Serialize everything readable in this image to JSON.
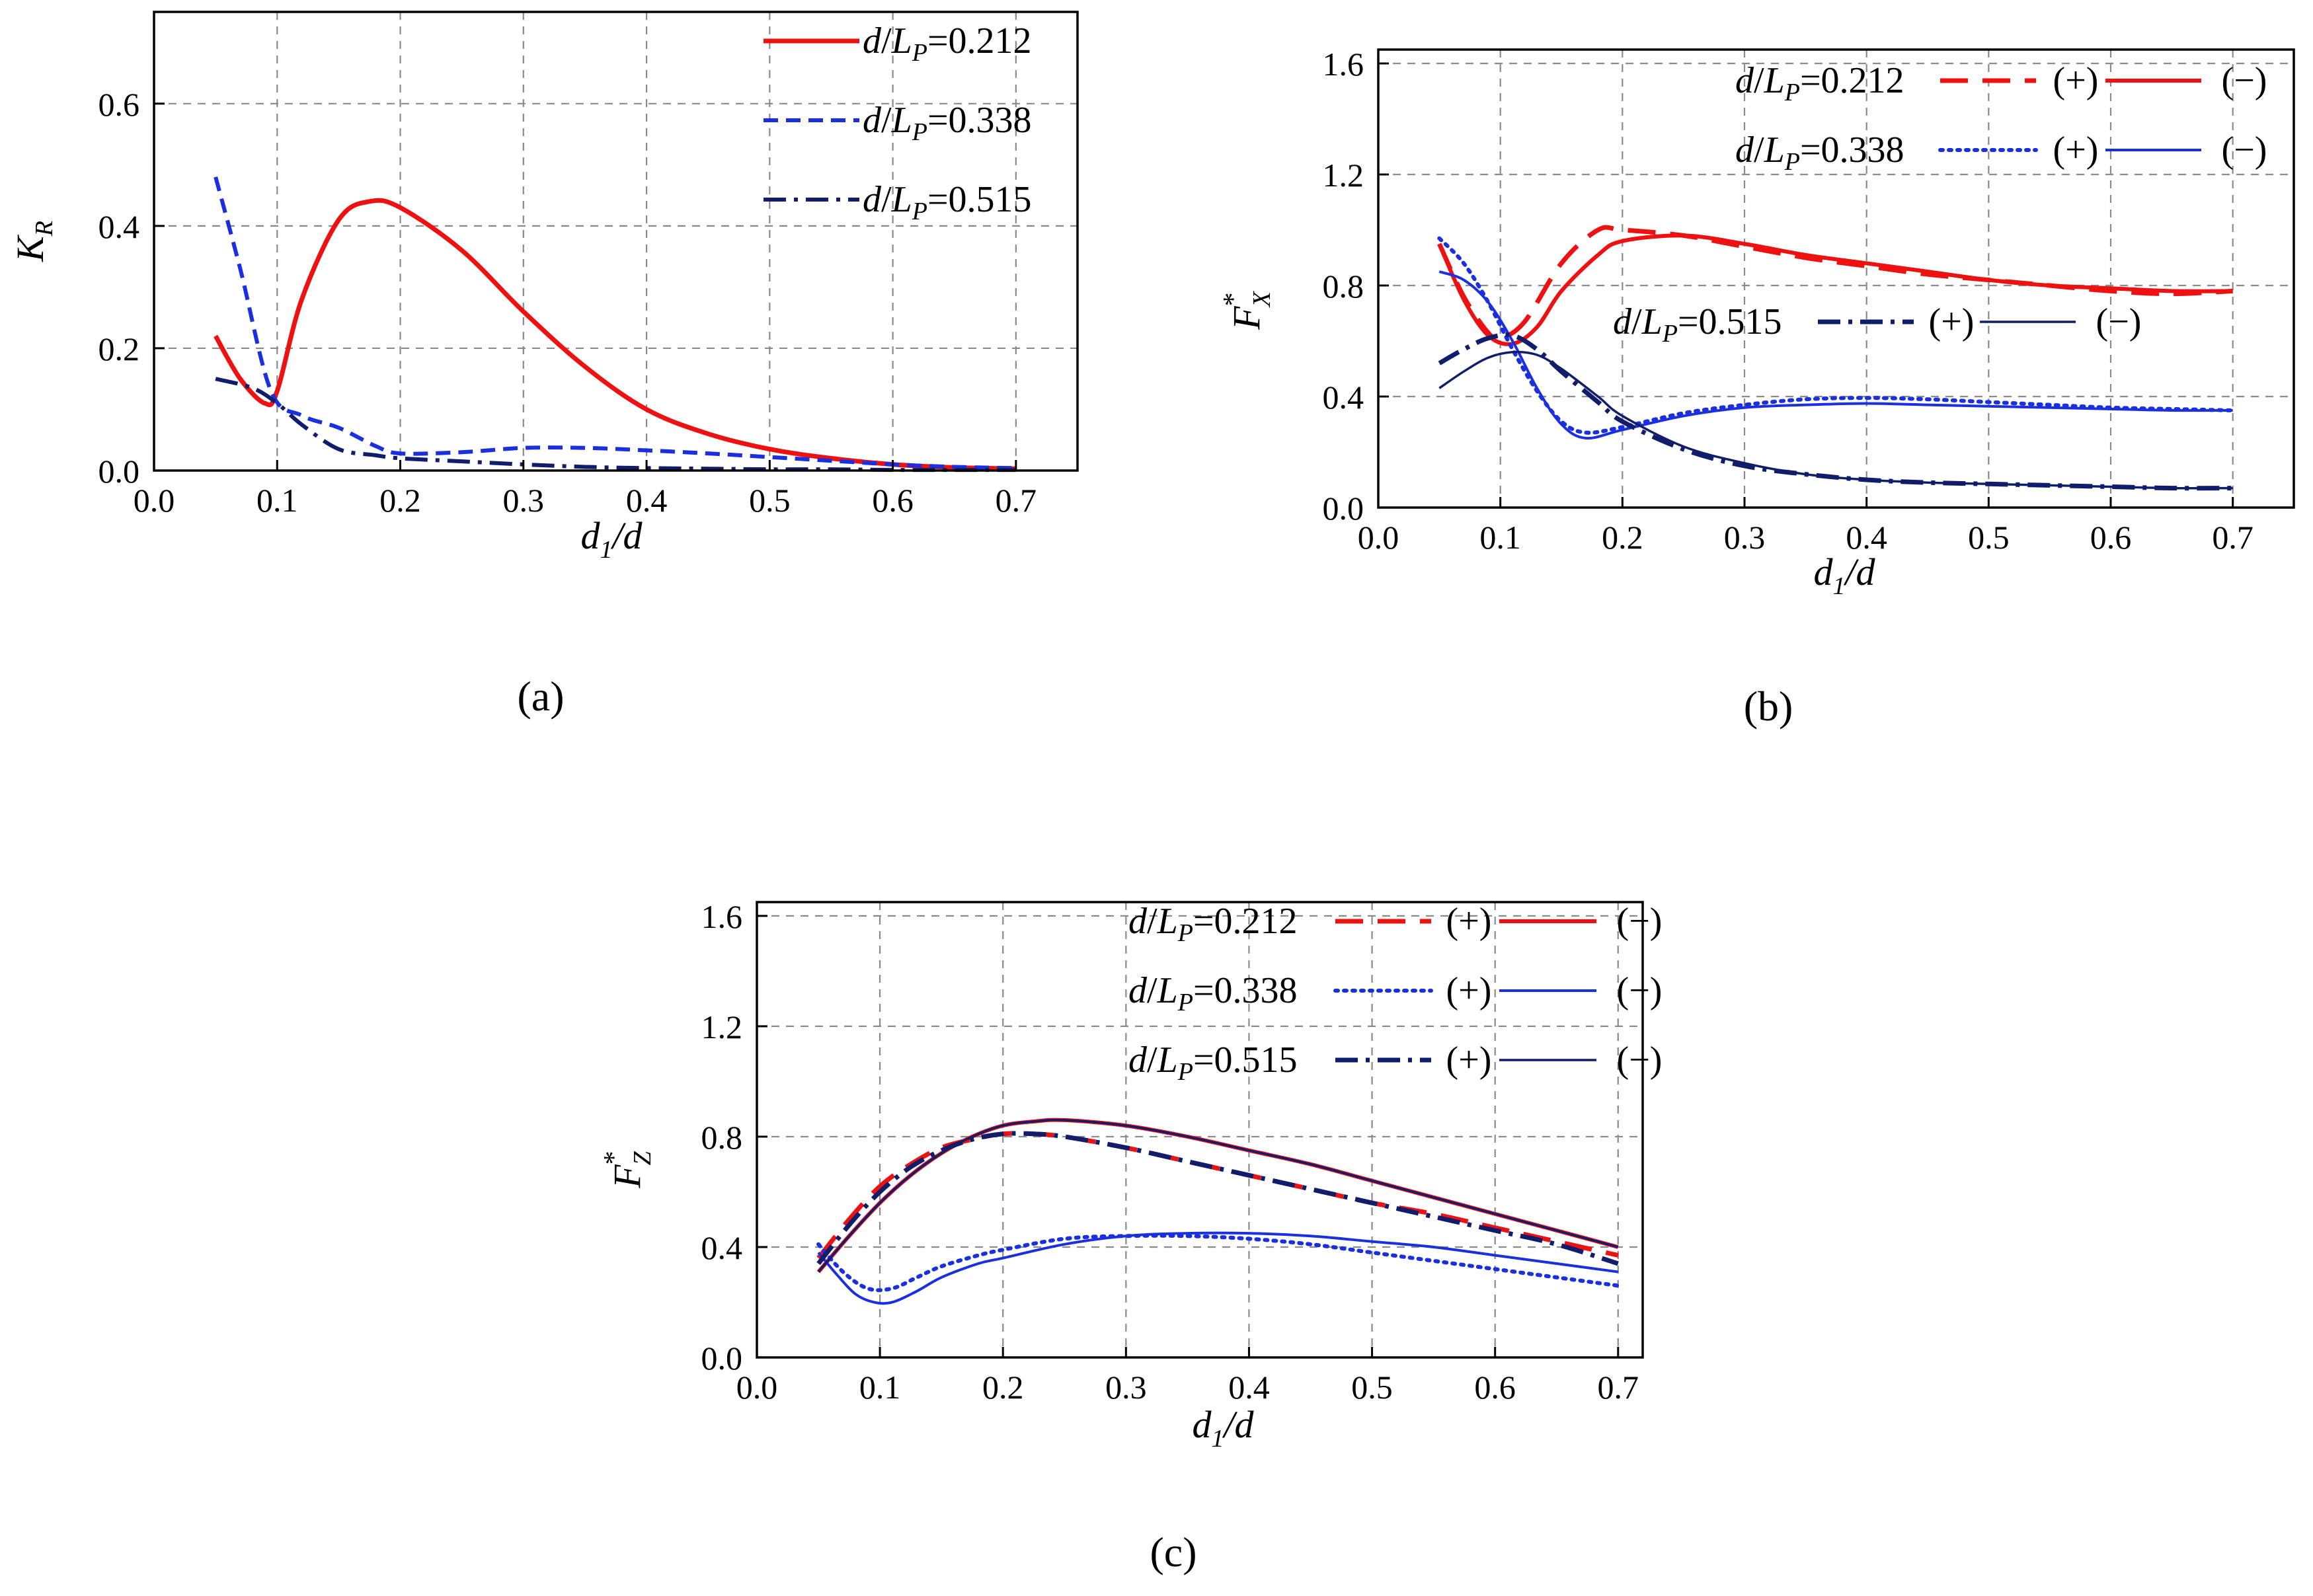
{
  "captions": [
    "(a)",
    "(b)",
    "(c)"
  ],
  "chart_data": [
    {
      "panel": "a",
      "type": "line",
      "caption": "(a)",
      "title": "",
      "xlabel": "d1/d",
      "xlabel_main": "d",
      "xlabel_sub": "1",
      "xlabel_tail": "/d",
      "ylabel": "K_R",
      "ylabel_main": "K",
      "ylabel_sub": "R",
      "ylabel_sup": "",
      "xlim": [
        0.0,
        0.75
      ],
      "ylim": [
        0.0,
        0.75
      ],
      "xticks": [
        0.0,
        0.1,
        0.2,
        0.3,
        0.4,
        0.5,
        0.6,
        0.7
      ],
      "xtick_labels": [
        "0.0",
        "0.1",
        "0.2",
        "0.3",
        "0.4",
        "0.5",
        "0.6",
        "0.7"
      ],
      "yticks": [
        0.0,
        0.2,
        0.4,
        0.6
      ],
      "ytick_labels": [
        "0.0",
        "0.2",
        "0.4",
        "0.6"
      ],
      "grid": true,
      "legend_position": "top-right",
      "series": [
        {
          "name": "d/LP=0.212",
          "label_value": "0.212",
          "side": "",
          "color": "#ee1111",
          "style": "solid",
          "width": 7,
          "x": [
            0.05,
            0.07,
            0.09,
            0.1,
            0.12,
            0.15,
            0.175,
            0.2,
            0.25,
            0.3,
            0.35,
            0.4,
            0.45,
            0.5,
            0.55,
            0.6,
            0.65,
            0.7
          ],
          "y": [
            0.22,
            0.15,
            0.11,
            0.13,
            0.28,
            0.41,
            0.44,
            0.43,
            0.36,
            0.26,
            0.17,
            0.1,
            0.06,
            0.035,
            0.02,
            0.01,
            0.005,
            0.003
          ]
        },
        {
          "name": "d/LP=0.338",
          "label_value": "0.338",
          "side": "",
          "color": "#1a2fe0",
          "style": "dashed",
          "width": 6,
          "x": [
            0.05,
            0.07,
            0.095,
            0.12,
            0.15,
            0.18,
            0.2,
            0.25,
            0.3,
            0.35,
            0.4,
            0.45,
            0.5,
            0.55,
            0.6,
            0.65,
            0.7
          ],
          "y": [
            0.48,
            0.33,
            0.13,
            0.09,
            0.07,
            0.04,
            0.028,
            0.03,
            0.037,
            0.037,
            0.033,
            0.028,
            0.022,
            0.016,
            0.01,
            0.006,
            0.004
          ]
        },
        {
          "name": "d/LP=0.515",
          "label_value": "0.515",
          "side": "",
          "color": "#101d6b",
          "style": "dashdot",
          "width": 6,
          "x": [
            0.05,
            0.08,
            0.1,
            0.12,
            0.15,
            0.18,
            0.2,
            0.25,
            0.3,
            0.35,
            0.4,
            0.45,
            0.5,
            0.55,
            0.6,
            0.65,
            0.7
          ],
          "y": [
            0.15,
            0.135,
            0.11,
            0.075,
            0.035,
            0.025,
            0.02,
            0.015,
            0.01,
            0.006,
            0.004,
            0.003,
            0.002,
            0.002,
            0.001,
            0.001,
            0.001
          ]
        }
      ],
      "legend": [
        {
          "value": "0.212",
          "plus": "",
          "minus": ""
        },
        {
          "value": "0.338",
          "plus": "",
          "minus": ""
        },
        {
          "value": "0.515",
          "plus": "",
          "minus": ""
        }
      ]
    },
    {
      "panel": "b",
      "type": "line",
      "caption": "(b)",
      "title": "",
      "xlabel": "d1/d",
      "xlabel_main": "d",
      "xlabel_sub": "1",
      "xlabel_tail": "/d",
      "ylabel": "F*_X",
      "ylabel_main": "F",
      "ylabel_sub": "X",
      "ylabel_sup": "*",
      "xlim": [
        0.0,
        0.75
      ],
      "ylim": [
        0.0,
        1.65
      ],
      "xticks": [
        0.0,
        0.1,
        0.2,
        0.3,
        0.4,
        0.5,
        0.6,
        0.7
      ],
      "xtick_labels": [
        "0.0",
        "0.1",
        "0.2",
        "0.3",
        "0.4",
        "0.5",
        "0.6",
        "0.7"
      ],
      "yticks": [
        0.0,
        0.4,
        0.8,
        1.2,
        1.6
      ],
      "ytick_labels": [
        "0.0",
        "0.4",
        "0.8",
        "1.2",
        "1.6"
      ],
      "grid": true,
      "legend_position": "top-right",
      "series": [
        {
          "name": "d/LP=0.212 (+)",
          "color": "#ee1111",
          "style": "longdash",
          "width": 7,
          "x": [
            0.05,
            0.07,
            0.09,
            0.1,
            0.12,
            0.15,
            0.18,
            0.2,
            0.25,
            0.3,
            0.35,
            0.4,
            0.45,
            0.5,
            0.55,
            0.6,
            0.65,
            0.7
          ],
          "y": [
            0.95,
            0.76,
            0.63,
            0.61,
            0.67,
            0.88,
            1.0,
            1.0,
            0.98,
            0.94,
            0.9,
            0.87,
            0.84,
            0.82,
            0.8,
            0.78,
            0.77,
            0.78
          ]
        },
        {
          "name": "d/LP=0.212 (−)",
          "color": "#ee1111",
          "style": "solid",
          "width": 6,
          "x": [
            0.05,
            0.07,
            0.09,
            0.11,
            0.13,
            0.15,
            0.18,
            0.2,
            0.25,
            0.3,
            0.35,
            0.4,
            0.45,
            0.5,
            0.55,
            0.6,
            0.65,
            0.7
          ],
          "y": [
            0.95,
            0.75,
            0.62,
            0.59,
            0.65,
            0.78,
            0.91,
            0.96,
            0.98,
            0.95,
            0.91,
            0.88,
            0.85,
            0.82,
            0.8,
            0.79,
            0.78,
            0.78
          ]
        },
        {
          "name": "d/LP=0.338 (+)",
          "color": "#1a2fe0",
          "style": "dotted",
          "width": 6,
          "x": [
            0.05,
            0.07,
            0.09,
            0.11,
            0.13,
            0.15,
            0.17,
            0.2,
            0.25,
            0.3,
            0.35,
            0.4,
            0.45,
            0.5,
            0.55,
            0.6,
            0.65,
            0.7
          ],
          "y": [
            0.97,
            0.88,
            0.74,
            0.57,
            0.42,
            0.31,
            0.27,
            0.29,
            0.34,
            0.37,
            0.39,
            0.395,
            0.39,
            0.38,
            0.37,
            0.36,
            0.355,
            0.35
          ]
        },
        {
          "name": "d/LP=0.338 (−)",
          "color": "#1a2fe0",
          "style": "solid",
          "width": 4,
          "x": [
            0.05,
            0.07,
            0.09,
            0.11,
            0.13,
            0.15,
            0.17,
            0.2,
            0.25,
            0.3,
            0.35,
            0.4,
            0.45,
            0.5,
            0.55,
            0.6,
            0.65,
            0.7
          ],
          "y": [
            0.85,
            0.82,
            0.74,
            0.6,
            0.43,
            0.3,
            0.25,
            0.28,
            0.33,
            0.36,
            0.37,
            0.375,
            0.37,
            0.365,
            0.36,
            0.355,
            0.35,
            0.35
          ]
        },
        {
          "name": "d/LP=0.515 (+)",
          "color": "#101d6b",
          "style": "dashdot",
          "width": 7,
          "x": [
            0.05,
            0.07,
            0.09,
            0.11,
            0.13,
            0.15,
            0.18,
            0.2,
            0.25,
            0.3,
            0.35,
            0.4,
            0.45,
            0.5,
            0.55,
            0.6,
            0.65,
            0.7
          ],
          "y": [
            0.52,
            0.57,
            0.61,
            0.62,
            0.57,
            0.49,
            0.38,
            0.31,
            0.21,
            0.15,
            0.12,
            0.1,
            0.09,
            0.085,
            0.08,
            0.075,
            0.07,
            0.07
          ]
        },
        {
          "name": "d/LP=0.515 (−)",
          "color": "#101d6b",
          "style": "solid",
          "width": 3.5,
          "x": [
            0.05,
            0.07,
            0.09,
            0.11,
            0.13,
            0.15,
            0.18,
            0.2,
            0.25,
            0.3,
            0.35,
            0.4,
            0.45,
            0.5,
            0.55,
            0.6,
            0.65,
            0.7
          ],
          "y": [
            0.43,
            0.49,
            0.54,
            0.56,
            0.55,
            0.5,
            0.4,
            0.33,
            0.22,
            0.16,
            0.12,
            0.1,
            0.09,
            0.085,
            0.08,
            0.075,
            0.07,
            0.07
          ]
        }
      ],
      "legend": [
        {
          "value": "0.212",
          "plus": "(+)",
          "minus": "(−)"
        },
        {
          "value": "0.338",
          "plus": "(+)",
          "minus": "(−)"
        },
        {
          "value": "0.515",
          "plus": "(+)",
          "minus": "(−)"
        }
      ]
    },
    {
      "panel": "c",
      "type": "line",
      "caption": "(c)",
      "title": "",
      "xlabel": "d1/d",
      "xlabel_main": "d",
      "xlabel_sub": "1",
      "xlabel_tail": "/d",
      "ylabel": "F*_Z",
      "ylabel_main": "F",
      "ylabel_sub": "Z",
      "ylabel_sup": "*",
      "xlim": [
        0.0,
        0.72
      ],
      "ylim": [
        0.0,
        1.65
      ],
      "xticks": [
        0.0,
        0.1,
        0.2,
        0.3,
        0.4,
        0.5,
        0.6,
        0.7
      ],
      "xtick_labels": [
        "0.0",
        "0.1",
        "0.2",
        "0.3",
        "0.4",
        "0.5",
        "0.6",
        "0.7"
      ],
      "yticks": [
        0.0,
        0.4,
        0.8,
        1.2,
        1.6
      ],
      "ytick_labels": [
        "0.0",
        "0.4",
        "0.8",
        "1.2",
        "1.6"
      ],
      "grid": true,
      "legend_position": "top-right",
      "series": [
        {
          "name": "d/LP=0.212 (+)",
          "color": "#ee1111",
          "style": "longdash",
          "width": 7,
          "x": [
            0.05,
            0.075,
            0.1,
            0.125,
            0.15,
            0.175,
            0.2,
            0.225,
            0.25,
            0.3,
            0.35,
            0.4,
            0.45,
            0.5,
            0.55,
            0.6,
            0.65,
            0.7
          ],
          "y": [
            0.36,
            0.5,
            0.62,
            0.7,
            0.76,
            0.79,
            0.81,
            0.81,
            0.8,
            0.76,
            0.71,
            0.66,
            0.61,
            0.56,
            0.52,
            0.47,
            0.42,
            0.37
          ]
        },
        {
          "name": "d/LP=0.212 (−)",
          "color": "#ee1111",
          "style": "solid",
          "width": 6,
          "x": [
            0.05,
            0.075,
            0.1,
            0.125,
            0.15,
            0.175,
            0.2,
            0.225,
            0.25,
            0.3,
            0.35,
            0.4,
            0.45,
            0.5,
            0.55,
            0.6,
            0.65,
            0.7
          ],
          "y": [
            0.31,
            0.44,
            0.56,
            0.66,
            0.74,
            0.8,
            0.84,
            0.855,
            0.86,
            0.84,
            0.8,
            0.75,
            0.7,
            0.64,
            0.58,
            0.52,
            0.46,
            0.4
          ]
        },
        {
          "name": "d/LP=0.338 (+)",
          "color": "#1a2fe0",
          "style": "dotted",
          "width": 6,
          "x": [
            0.05,
            0.07,
            0.09,
            0.11,
            0.13,
            0.15,
            0.18,
            0.2,
            0.25,
            0.3,
            0.35,
            0.4,
            0.45,
            0.5,
            0.55,
            0.6,
            0.65,
            0.7
          ],
          "y": [
            0.41,
            0.31,
            0.25,
            0.25,
            0.29,
            0.33,
            0.37,
            0.39,
            0.43,
            0.44,
            0.44,
            0.43,
            0.41,
            0.38,
            0.35,
            0.32,
            0.29,
            0.26
          ]
        },
        {
          "name": "d/LP=0.338 (−)",
          "color": "#1a2fe0",
          "style": "solid",
          "width": 4,
          "x": [
            0.05,
            0.065,
            0.08,
            0.095,
            0.11,
            0.13,
            0.15,
            0.18,
            0.2,
            0.25,
            0.3,
            0.35,
            0.4,
            0.45,
            0.5,
            0.55,
            0.6,
            0.65,
            0.7
          ],
          "y": [
            0.38,
            0.3,
            0.23,
            0.2,
            0.2,
            0.24,
            0.29,
            0.34,
            0.36,
            0.41,
            0.44,
            0.45,
            0.45,
            0.44,
            0.42,
            0.4,
            0.37,
            0.34,
            0.31
          ]
        },
        {
          "name": "d/LP=0.515 (+)",
          "color": "#101d6b",
          "style": "dashdot",
          "width": 7,
          "x": [
            0.05,
            0.075,
            0.1,
            0.125,
            0.15,
            0.175,
            0.2,
            0.225,
            0.25,
            0.3,
            0.35,
            0.4,
            0.45,
            0.5,
            0.55,
            0.6,
            0.65,
            0.7
          ],
          "y": [
            0.34,
            0.48,
            0.6,
            0.69,
            0.75,
            0.79,
            0.81,
            0.81,
            0.8,
            0.76,
            0.71,
            0.66,
            0.61,
            0.56,
            0.51,
            0.46,
            0.41,
            0.34
          ]
        },
        {
          "name": "d/LP=0.515 (−)",
          "color": "#101d6b",
          "style": "solid",
          "width": 3.5,
          "x": [
            0.05,
            0.075,
            0.1,
            0.125,
            0.15,
            0.175,
            0.2,
            0.225,
            0.25,
            0.3,
            0.35,
            0.4,
            0.45,
            0.5,
            0.55,
            0.6,
            0.65,
            0.7
          ],
          "y": [
            0.31,
            0.44,
            0.56,
            0.66,
            0.74,
            0.8,
            0.84,
            0.855,
            0.86,
            0.84,
            0.8,
            0.75,
            0.7,
            0.64,
            0.58,
            0.52,
            0.46,
            0.4
          ]
        }
      ],
      "legend": [
        {
          "value": "0.212",
          "plus": "(+)",
          "minus": "(−)"
        },
        {
          "value": "0.338",
          "plus": "(+)",
          "minus": "(−)"
        },
        {
          "value": "0.515",
          "plus": "(+)",
          "minus": "(−)"
        }
      ]
    }
  ]
}
